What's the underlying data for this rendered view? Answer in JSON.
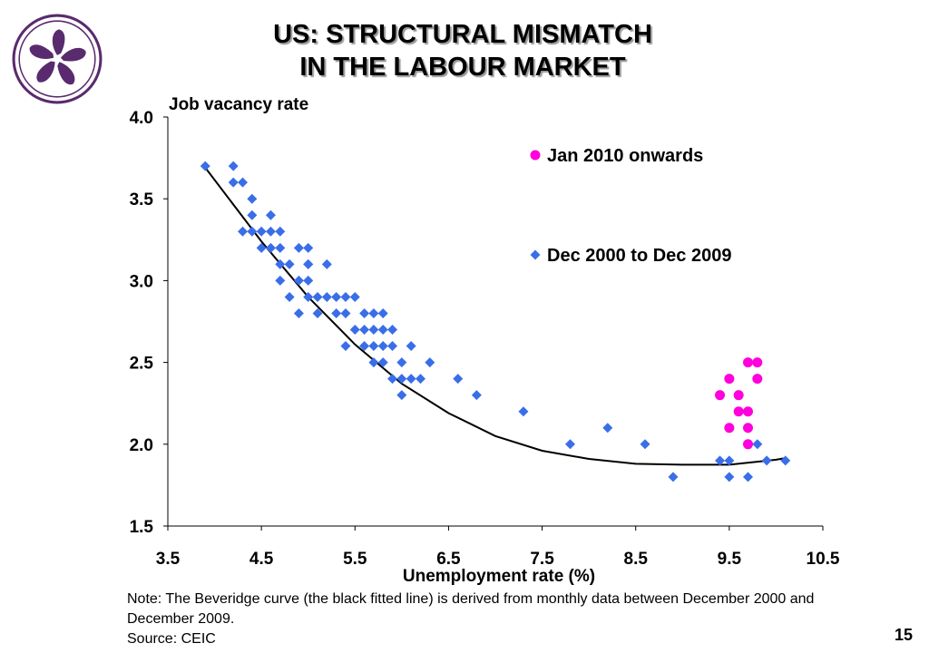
{
  "slide": {
    "title_line1": "US: STRUCTURAL MISMATCH",
    "title_line2": "IN THE LABOUR MARKET",
    "note": "Note: The Beveridge curve (the black fitted line) is derived from monthly data between December 2000 and December 2009.",
    "source": "Source: CEIC",
    "page_number": "15",
    "logo_icon": "bauhinia-logo-icon"
  },
  "chart_data": {
    "type": "scatter",
    "ylabel": "Job vacancy rate",
    "xlabel": "Unemployment rate (%)",
    "xlim": [
      3.5,
      10.5
    ],
    "ylim": [
      1.5,
      4.0
    ],
    "x_ticks": [
      "3.5",
      "4.5",
      "5.5",
      "6.5",
      "7.5",
      "8.5",
      "9.5",
      "10.5"
    ],
    "y_ticks": [
      "1.5",
      "2.0",
      "2.5",
      "3.0",
      "3.5",
      "4.0"
    ],
    "grid": false,
    "legend_position": "top-right",
    "series": [
      {
        "name": "Jan 2010 onwards",
        "color": "#ff00dd",
        "marker": "circle",
        "points": [
          [
            9.4,
            2.3
          ],
          [
            9.5,
            2.4
          ],
          [
            9.5,
            2.1
          ],
          [
            9.6,
            2.3
          ],
          [
            9.6,
            2.2
          ],
          [
            9.7,
            2.5
          ],
          [
            9.7,
            2.2
          ],
          [
            9.7,
            2.1
          ],
          [
            9.7,
            2.0
          ],
          [
            9.8,
            2.5
          ],
          [
            9.8,
            2.4
          ]
        ]
      },
      {
        "name": "Dec 2000 to Dec 2009",
        "color": "#3a6ee8",
        "marker": "diamond",
        "points": [
          [
            3.9,
            3.7
          ],
          [
            4.2,
            3.7
          ],
          [
            4.2,
            3.6
          ],
          [
            4.3,
            3.6
          ],
          [
            4.4,
            3.5
          ],
          [
            4.4,
            3.4
          ],
          [
            4.3,
            3.3
          ],
          [
            4.4,
            3.3
          ],
          [
            4.5,
            3.3
          ],
          [
            4.5,
            3.2
          ],
          [
            4.6,
            3.4
          ],
          [
            4.6,
            3.3
          ],
          [
            4.6,
            3.2
          ],
          [
            4.7,
            3.3
          ],
          [
            4.7,
            3.2
          ],
          [
            4.7,
            3.1
          ],
          [
            4.7,
            3.0
          ],
          [
            4.8,
            3.1
          ],
          [
            4.8,
            2.9
          ],
          [
            4.9,
            3.2
          ],
          [
            4.9,
            3.0
          ],
          [
            4.9,
            2.8
          ],
          [
            5.0,
            3.2
          ],
          [
            5.0,
            3.1
          ],
          [
            5.0,
            3.1
          ],
          [
            5.0,
            3.0
          ],
          [
            5.0,
            2.9
          ],
          [
            5.1,
            2.9
          ],
          [
            5.1,
            2.8
          ],
          [
            5.2,
            3.1
          ],
          [
            5.2,
            2.9
          ],
          [
            5.3,
            2.9
          ],
          [
            5.3,
            2.8
          ],
          [
            5.4,
            2.9
          ],
          [
            5.4,
            2.8
          ],
          [
            5.4,
            2.6
          ],
          [
            5.5,
            2.9
          ],
          [
            5.5,
            2.7
          ],
          [
            5.6,
            2.8
          ],
          [
            5.6,
            2.7
          ],
          [
            5.6,
            2.6
          ],
          [
            5.7,
            2.8
          ],
          [
            5.7,
            2.7
          ],
          [
            5.7,
            2.6
          ],
          [
            5.7,
            2.5
          ],
          [
            5.8,
            2.8
          ],
          [
            5.8,
            2.7
          ],
          [
            5.8,
            2.6
          ],
          [
            5.8,
            2.5
          ],
          [
            5.9,
            2.7
          ],
          [
            5.9,
            2.6
          ],
          [
            5.9,
            2.4
          ],
          [
            6.0,
            2.5
          ],
          [
            6.0,
            2.4
          ],
          [
            6.0,
            2.3
          ],
          [
            6.1,
            2.6
          ],
          [
            6.1,
            2.4
          ],
          [
            6.2,
            2.4
          ],
          [
            6.3,
            2.5
          ],
          [
            6.6,
            2.4
          ],
          [
            6.8,
            2.3
          ],
          [
            7.3,
            2.2
          ],
          [
            7.8,
            2.0
          ],
          [
            8.2,
            2.1
          ],
          [
            8.6,
            2.0
          ],
          [
            8.9,
            1.8
          ],
          [
            9.4,
            1.9
          ],
          [
            9.5,
            1.9
          ],
          [
            9.5,
            1.8
          ],
          [
            9.7,
            1.8
          ],
          [
            9.8,
            2.0
          ],
          [
            9.9,
            1.9
          ],
          [
            10.1,
            1.9
          ]
        ]
      }
    ],
    "fitted_curve": {
      "label": "Beveridge curve",
      "color": "#000000",
      "points": [
        [
          3.9,
          3.69
        ],
        [
          4.5,
          3.24
        ],
        [
          5.0,
          2.9
        ],
        [
          5.5,
          2.61
        ],
        [
          6.0,
          2.37
        ],
        [
          6.5,
          2.19
        ],
        [
          7.0,
          2.05
        ],
        [
          7.5,
          1.96
        ],
        [
          8.0,
          1.91
        ],
        [
          8.5,
          1.88
        ],
        [
          9.0,
          1.875
        ],
        [
          9.5,
          1.875
        ],
        [
          10.0,
          1.905
        ],
        [
          10.1,
          1.915
        ]
      ]
    }
  }
}
